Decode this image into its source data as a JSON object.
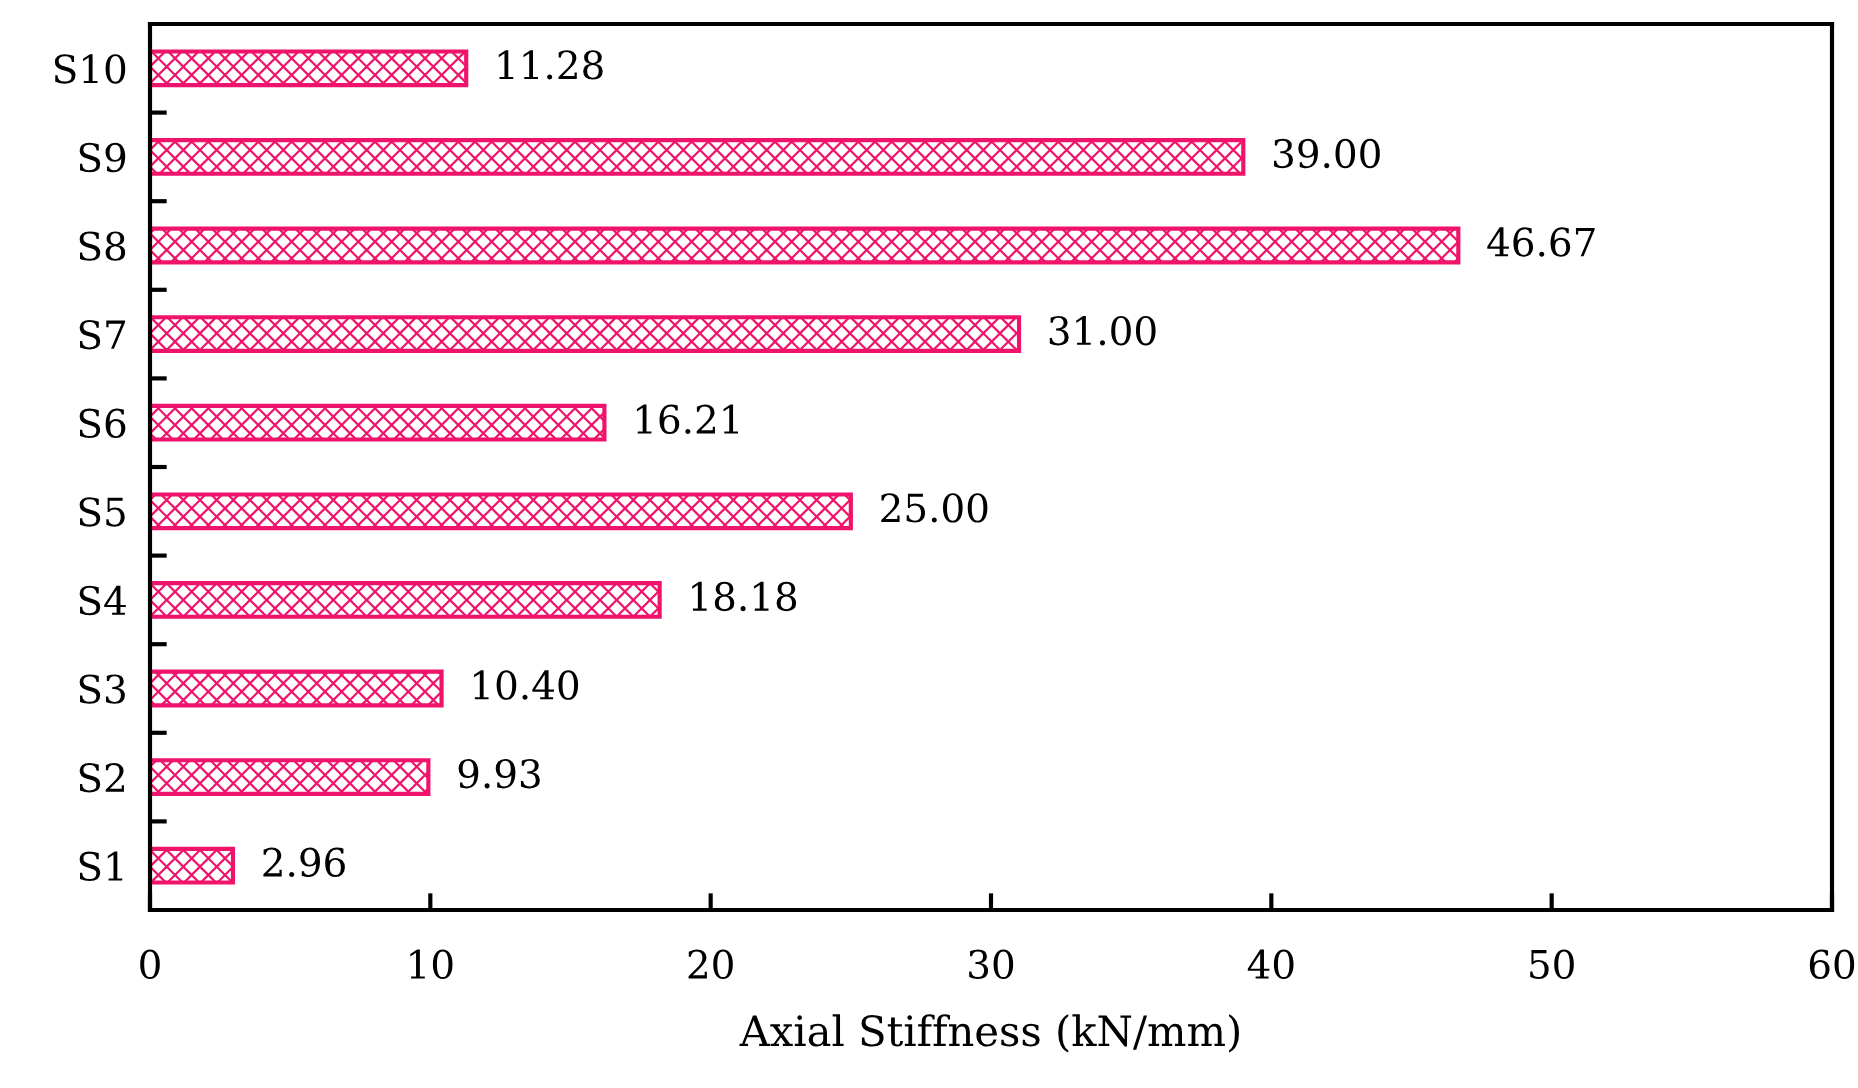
{
  "chart_data": {
    "type": "bar",
    "orientation": "horizontal",
    "xlabel": "Axial Stiffness (kN/mm)",
    "categories": [
      "S10",
      "S9",
      "S8",
      "S7",
      "S6",
      "S5",
      "S4",
      "S3",
      "S2",
      "S1"
    ],
    "values": [
      11.28,
      39.0,
      46.67,
      31.0,
      16.21,
      25.0,
      18.18,
      10.4,
      9.93,
      2.96
    ],
    "value_labels": [
      "11.28",
      "39.00",
      "46.67",
      "31.00",
      "16.21",
      "25.00",
      "18.18",
      "10.40",
      "9.93",
      "2.96"
    ],
    "color": "#f0136b",
    "xlim": [
      0,
      60
    ],
    "xticks": [
      0,
      10,
      20,
      30,
      40,
      50,
      60
    ],
    "grid": false
  }
}
